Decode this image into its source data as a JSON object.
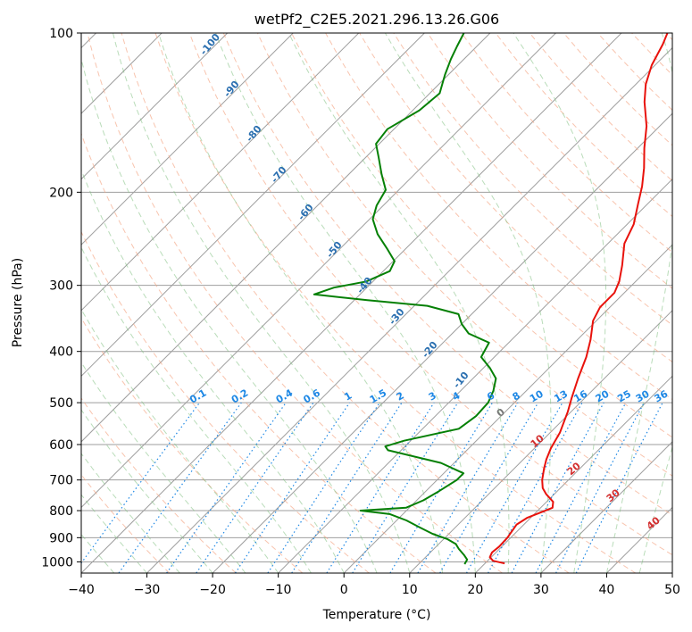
{
  "chart_data": {
    "type": "line",
    "chart_kind": "skew-t log-p diagram",
    "title": "wetPf2_C2E5.2021.296.13.26.G06",
    "xlabel": "Temperature (°C)",
    "ylabel": "Pressure (hPa)",
    "xlim": [
      -40,
      50
    ],
    "ylim": [
      1050,
      100
    ],
    "y_scale": "log",
    "grid": true,
    "x_ticks": [
      -40,
      -30,
      -20,
      -10,
      0,
      10,
      20,
      30,
      40,
      50
    ],
    "y_ticks": [
      1000,
      900,
      800,
      700,
      600,
      500,
      400,
      300,
      200,
      100
    ],
    "colors": {
      "temperature": "#e8120c",
      "dewpoint": "#058005",
      "mixing_ratio": "#1e88e5",
      "dry_adiabat": "#f4a582",
      "moist_adiabat": "#7fbf7f",
      "isotherm": "#9e9e9e",
      "frame": "#000000"
    },
    "series": [
      {
        "key": "temperature",
        "points": [
          [
            1007,
            23
          ],
          [
            995,
            20.8
          ],
          [
            980,
            19.8
          ],
          [
            960,
            19.4
          ],
          [
            935,
            19.6
          ],
          [
            900,
            19.5
          ],
          [
            850,
            18.9
          ],
          [
            825,
            19.5
          ],
          [
            790,
            21.8
          ],
          [
            770,
            21.0
          ],
          [
            745,
            18.8
          ],
          [
            725,
            17.3
          ],
          [
            700,
            16.0
          ],
          [
            665,
            14.5
          ],
          [
            640,
            13.5
          ],
          [
            610,
            12.5
          ],
          [
            570,
            11.5
          ],
          [
            520,
            9.5
          ],
          [
            490,
            8.0
          ],
          [
            450,
            6.0
          ],
          [
            410,
            4.0
          ],
          [
            380,
            2.0
          ],
          [
            350,
            -0.5
          ],
          [
            330,
            -1.5
          ],
          [
            310,
            -1.5
          ],
          [
            295,
            -2.5
          ],
          [
            275,
            -4.5
          ],
          [
            250,
            -7.5
          ],
          [
            230,
            -9.0
          ],
          [
            210,
            -11.5
          ],
          [
            195,
            -13.5
          ],
          [
            180,
            -16.0
          ],
          [
            165,
            -19.0
          ],
          [
            150,
            -22.0
          ],
          [
            135,
            -26.0
          ],
          [
            125,
            -28.5
          ],
          [
            115,
            -30.5
          ],
          [
            105,
            -32.0
          ],
          [
            100,
            -33.0
          ]
        ]
      },
      {
        "key": "dewpoint",
        "points": [
          [
            1010,
            17
          ],
          [
            990,
            16.7
          ],
          [
            970,
            15.5
          ],
          [
            945,
            13.8
          ],
          [
            925,
            12.6
          ],
          [
            905,
            10.5
          ],
          [
            885,
            7.5
          ],
          [
            860,
            4.5
          ],
          [
            835,
            1.5
          ],
          [
            812,
            -2.0
          ],
          [
            800,
            -7.0
          ],
          [
            790,
            -0.5
          ],
          [
            765,
            1.0
          ],
          [
            735,
            2.0
          ],
          [
            700,
            3.0
          ],
          [
            680,
            3.0
          ],
          [
            650,
            -2.0
          ],
          [
            615,
            -12.0
          ],
          [
            605,
            -13.0
          ],
          [
            590,
            -11.0
          ],
          [
            560,
            -4.5
          ],
          [
            530,
            -3.8
          ],
          [
            500,
            -4.0
          ],
          [
            475,
            -5.0
          ],
          [
            450,
            -6.5
          ],
          [
            430,
            -9.0
          ],
          [
            410,
            -12.0
          ],
          [
            385,
            -13.0
          ],
          [
            370,
            -17.5
          ],
          [
            355,
            -20.0
          ],
          [
            340,
            -22.0
          ],
          [
            328,
            -28.0
          ],
          [
            320,
            -38.0
          ],
          [
            312,
            -47.0
          ],
          [
            303,
            -45.0
          ],
          [
            295,
            -41.0
          ],
          [
            282,
            -39.0
          ],
          [
            270,
            -39.8
          ],
          [
            255,
            -43.0
          ],
          [
            240,
            -46.5
          ],
          [
            225,
            -49.5
          ],
          [
            212,
            -51.0
          ],
          [
            198,
            -52.0
          ],
          [
            185,
            -55.0
          ],
          [
            172,
            -58.0
          ],
          [
            162,
            -60.5
          ],
          [
            152,
            -61.0
          ],
          [
            140,
            -59.0
          ],
          [
            130,
            -58.5
          ],
          [
            120,
            -60.5
          ],
          [
            112,
            -62.0
          ],
          [
            106,
            -63.0
          ],
          [
            100,
            -64.0
          ]
        ]
      }
    ],
    "mixing_ratio_labels_g_per_kg": [
      "0.1",
      "0.2",
      "0.4",
      "0.6",
      "1",
      "1.5",
      "2",
      "3",
      "4",
      "6",
      "8",
      "10",
      "13",
      "16",
      "20",
      "25",
      "30",
      "36"
    ],
    "dry_adiabat_labels_c": [
      "-100",
      "-90",
      "-80",
      "-70",
      "-60",
      "-50",
      "-40",
      "-30",
      "-20",
      "-10"
    ],
    "moist_adiabat_labels_c": [
      "0",
      "10",
      "20",
      "30",
      "40"
    ]
  }
}
